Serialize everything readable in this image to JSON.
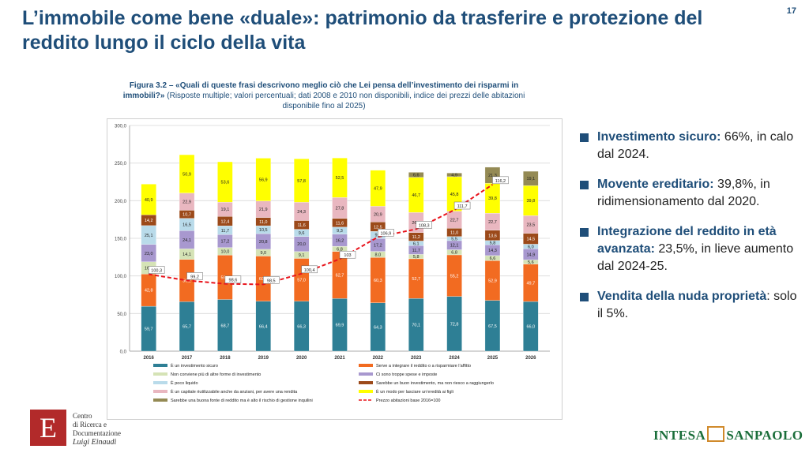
{
  "slide": {
    "title": "L’immobile come bene «duale»: patrimonio da trasferire e protezione del reddito lungo il ciclo della vita",
    "page_number": "17"
  },
  "figure": {
    "caption_bold": "Figura 3.2 – «Quali di queste frasi descrivono meglio ciò che Lei pensa dell’investimento dei risparmi in immobili?»",
    "caption_rest": " (Risposte multiple; valori percentuali; dati 2008 e 2010 non disponibili, indice dei prezzi delle abitazioni disponibile fino al 2025)"
  },
  "bullets": [
    {
      "lead": "Investimento sicuro:",
      "text": " 66%, in calo dal 2024."
    },
    {
      "lead": "Movente ereditario:",
      "text": " 39,8%, in ridimensionamento dal 2020."
    },
    {
      "lead": "Integrazione del reddito in età avanzata:",
      "text": " 23,5%, in lieve aumento dal 2024-25."
    },
    {
      "lead": "Vendita della nuda proprietà",
      "text": ": solo il 5%."
    }
  ],
  "logos": {
    "left_line1": "Centro",
    "left_line2": "di Ricerca e",
    "left_line3": "Documentazione",
    "left_line4": "Luigi Einaudi",
    "left_glyph": "E",
    "right_part1": "INTESA",
    "right_part2": "SANPAOLO"
  },
  "chart_data": {
    "type": "bar",
    "stacked": true,
    "categories": [
      "2016",
      "2017",
      "2018",
      "2019",
      "2020",
      "2021",
      "2022",
      "2023",
      "2024",
      "2025",
      "2026"
    ],
    "y_ticks": [
      "0,0",
      "50,0",
      "100,0",
      "150,0",
      "200,0",
      "250,0",
      "300,0"
    ],
    "ylim": [
      0,
      300
    ],
    "series": [
      {
        "name": "È un investimento sicuro",
        "color": "#2e7f95",
        "values": [
          59.7,
          65.7,
          68.7,
          66.4,
          66.3,
          69.9,
          64.3,
          70.1,
          72.8,
          67.5,
          66.0
        ],
        "labels": [
          "59,7",
          "65,7",
          "68,7",
          "66,4",
          "66,3",
          "69,9",
          "64,3",
          "70,1",
          "72,8",
          "67,5",
          "66,0"
        ]
      },
      {
        "name": "Serve a integrare il reddito o a risparmiare l’affitto",
        "color": "#f26b21",
        "values": [
          42.8,
          56.2,
          59.0,
          60.0,
          57.0,
          62.7,
          60.3,
          52.7,
          55.2,
          52.9,
          49.7
        ],
        "labels": [
          "42,8",
          "56,2",
          "59,0",
          "60,0",
          "57,0",
          "62,7",
          "60,3",
          "52,7",
          "55,2",
          "52,9",
          "49,7"
        ]
      },
      {
        "name": "Non conviene più di altre forme di investimento",
        "color": "#d5e3b6",
        "values": [
          16.3,
          14.1,
          10.0,
          9.0,
          9.1,
          6.8,
          8.0,
          5.8,
          6.8,
          6.6,
          5.6
        ],
        "labels": [
          "16,3",
          "14,1",
          "10,0",
          "9,0",
          "9,1",
          "6,8",
          "8,0",
          "5,8",
          "6,8",
          "6,6",
          "5,6"
        ]
      },
      {
        "name": "Ci sono troppe spese e imposte",
        "color": "#a898cf",
        "values": [
          23.0,
          24.1,
          17.2,
          20.8,
          20.0,
          16.2,
          17.2,
          11.7,
          12.1,
          14.3,
          14.9
        ],
        "labels": [
          "23,0",
          "24,1",
          "17,2",
          "20,8",
          "20,0",
          "16,2",
          "17,2",
          "11,7",
          "12,1",
          "14,3",
          "14,9"
        ]
      },
      {
        "name": "È poco liquido",
        "color": "#b9dbea",
        "values": [
          25.1,
          16.5,
          11.7,
          10.5,
          9.6,
          9.3,
          9.4,
          6.1,
          5.5,
          5.8,
          6.0
        ],
        "labels": [
          "25,1",
          "16,5",
          "11,7",
          "10,5",
          "9,6",
          "9,3",
          "9,4",
          "6,1",
          "5,5",
          "5,8",
          "6,0"
        ]
      },
      {
        "name": "Sarebbe un buon investimento, ma non riesco a raggiungerlo",
        "color": "#9c4a1a",
        "values": [
          14.2,
          10.7,
          12.4,
          11.0,
          11.6,
          11.6,
          12.5,
          11.2,
          11.0,
          13.6,
          14.5
        ],
        "labels": [
          "14,2",
          "10,7",
          "12,4",
          "11,0",
          "11,6",
          "11,6",
          "12,5",
          "11,2",
          "11,0",
          "13,6",
          "14,5"
        ]
      },
      {
        "name": "È un capitale riutilizzabile anche da anziani, per avere una rendita",
        "color": "#e9b7c0",
        "values": [
          0,
          22.9,
          19.1,
          21.9,
          24.3,
          27.8,
          20.9,
          26.8,
          22.7,
          22.7,
          23.5
        ],
        "labels": [
          "",
          "22,9",
          "19,1",
          "21,9",
          "24,3",
          "27,8",
          "20,9",
          "26,8",
          "22,7",
          "22,7",
          "23,5"
        ]
      },
      {
        "name": "È un modo per lasciare un’eredità ai figli",
        "color": "#ffff00",
        "values": [
          40.9,
          50.9,
          53.6,
          56.9,
          57.8,
          52.5,
          47.9,
          46.7,
          45.8,
          39.8,
          39.8
        ],
        "labels": [
          "40,9",
          "50,9",
          "53,6",
          "56,9",
          "57,8",
          "52,5",
          "47,9",
          "46,7",
          "45,8",
          "39,8",
          "39,8"
        ]
      },
      {
        "name": "Sarebbe una buona fonte di reddito ma è alto il rischio di gestione inquilini",
        "color": "#948a54",
        "values": [
          0,
          0,
          0,
          0,
          0,
          0,
          0,
          6.6,
          4.9,
          21.3,
          19.1
        ],
        "labels": [
          "",
          "",
          "",
          "",
          "",
          "",
          "",
          "6,6",
          "4,9",
          "21,3",
          "19,1"
        ]
      }
    ],
    "price_index": {
      "name": "Prezzo abitazioni base 2016=100",
      "color": "#e8141c",
      "values": [
        100.3,
        99.2,
        98.6,
        98.5,
        100.4,
        103.0,
        106.9,
        108.3,
        111.7,
        116.2,
        null
      ],
      "labels": [
        "100,3",
        "99,2",
        "98,6",
        "98,5",
        "100,4",
        "103",
        "106,9",
        "108,3",
        "111,7",
        "116,2",
        ""
      ],
      "scale_note": "index plotted on a secondary scale aligned with 100 at the 100,0 gridline"
    }
  }
}
